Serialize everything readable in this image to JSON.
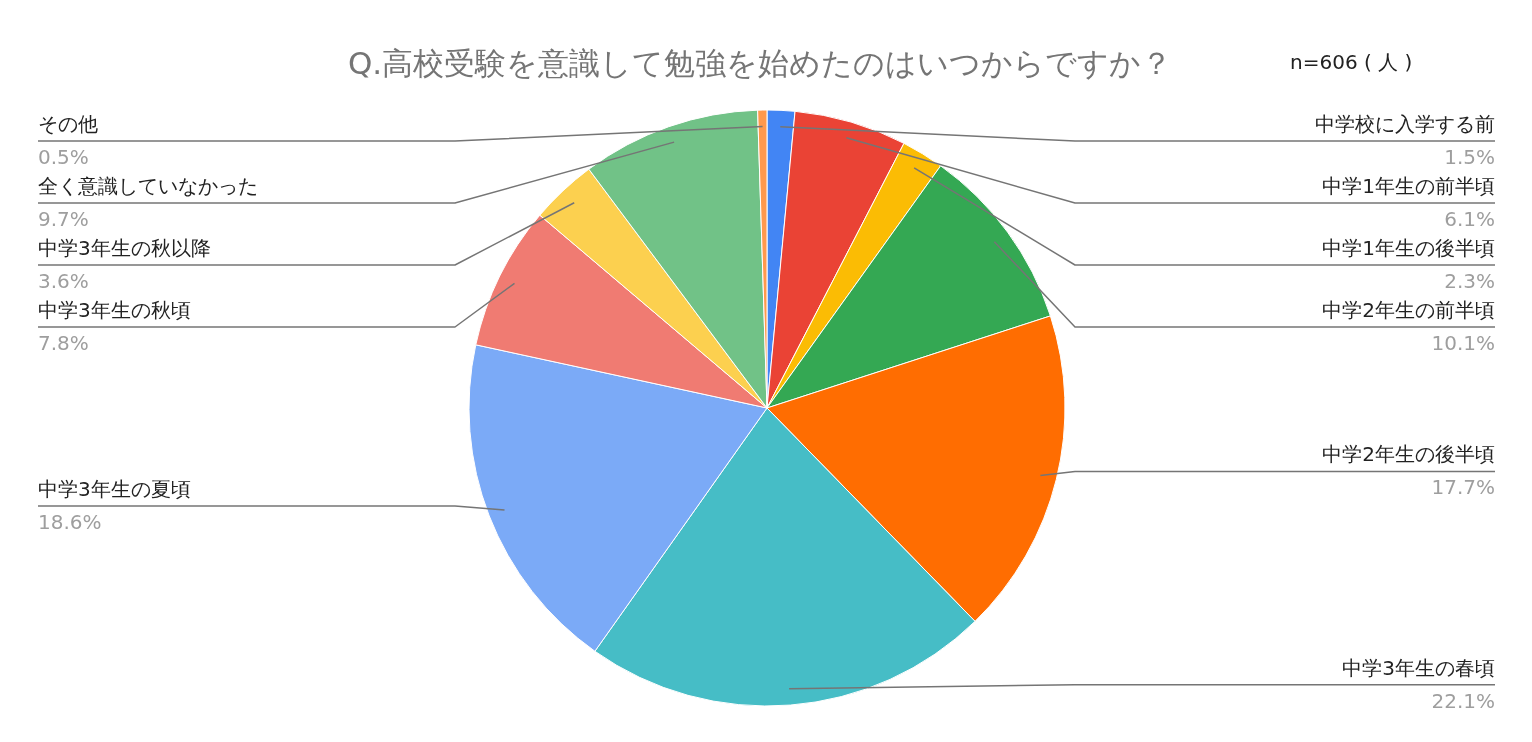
{
  "chart_data": {
    "type": "pie",
    "title": "Q.高校受験を意識して勉強を始めたのはいつからですか？",
    "subtitle": "n=606 ( 人 )",
    "categories": [
      "中学校に入学する前",
      "中学1年生の前半頃",
      "中学1年生の後半頃",
      "中学2年生の前半頃",
      "中学2年生の後半頃",
      "中学3年生の春頃",
      "中学3年生の夏頃",
      "中学3年生の秋頃",
      "中学3年生の秋以降",
      "全く意識していなかった",
      "その他"
    ],
    "values": [
      1.5,
      6.1,
      2.3,
      10.1,
      17.7,
      22.1,
      18.6,
      7.8,
      3.6,
      9.7,
      0.5
    ],
    "value_labels": [
      "1.5%",
      "6.1%",
      "2.3%",
      "10.1%",
      "17.7%",
      "22.1%",
      "18.6%",
      "7.8%",
      "3.6%",
      "9.7%",
      "0.5%"
    ],
    "colors": [
      "#4285f4",
      "#ea4335",
      "#fbbc04",
      "#34a853",
      "#ff6d01",
      "#46bdc6",
      "#7baaf7",
      "#f07b72",
      "#fcd04f",
      "#71c287",
      "#ff994d"
    ]
  }
}
